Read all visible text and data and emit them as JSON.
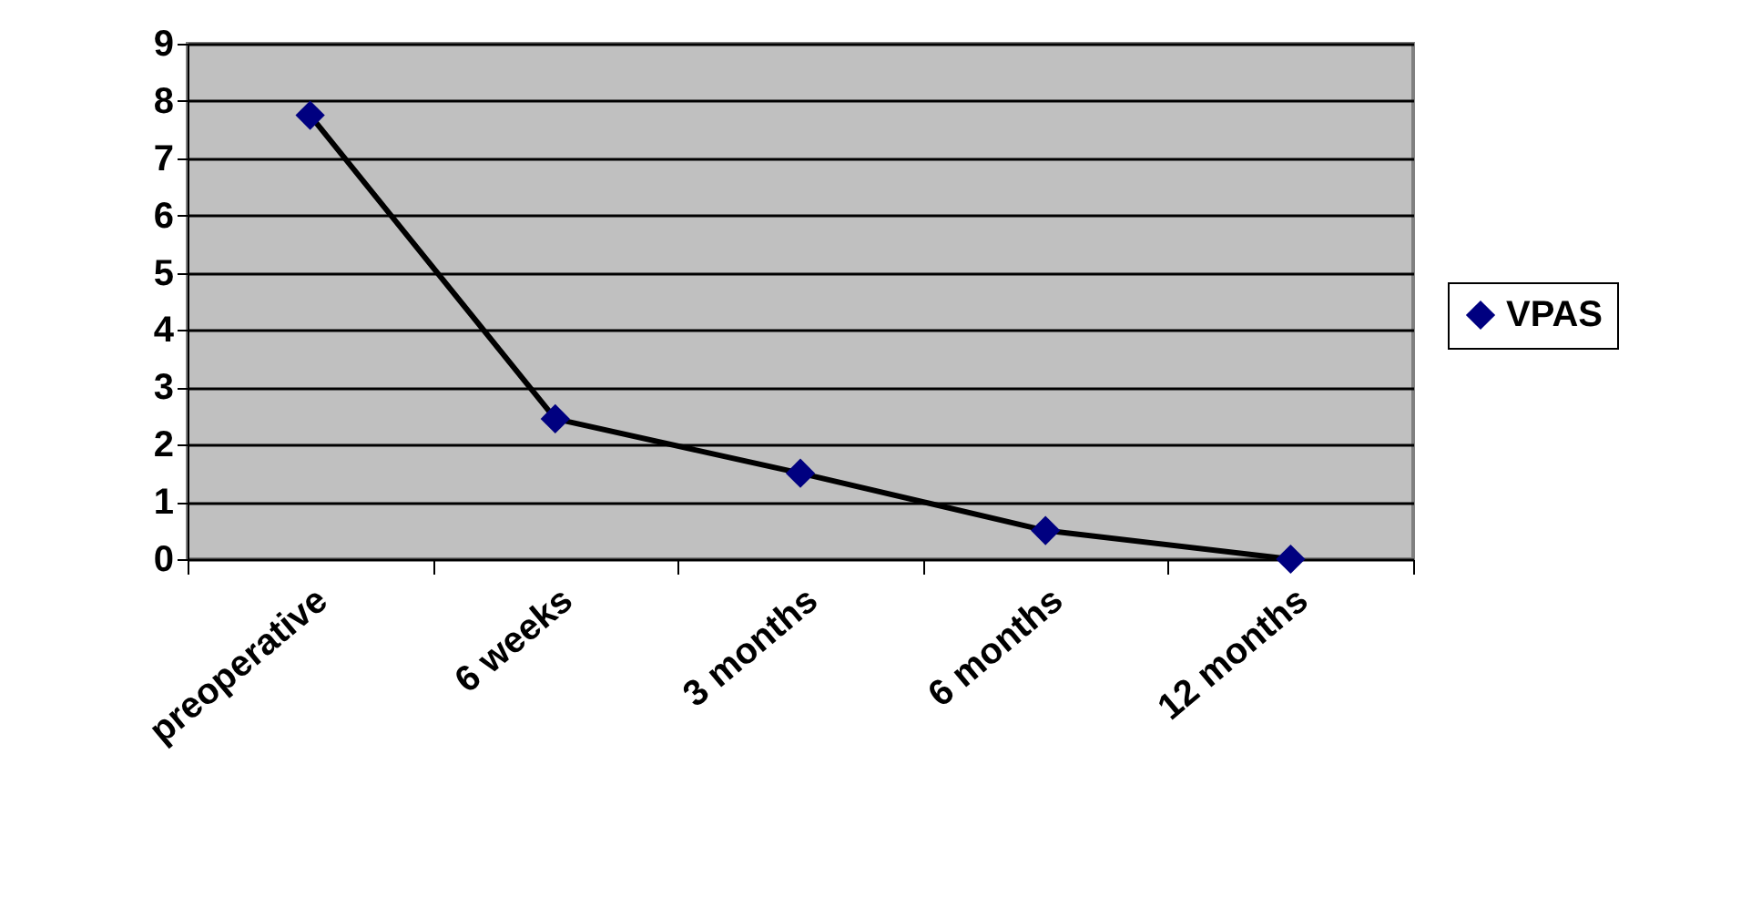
{
  "chart_data": {
    "type": "line",
    "categories": [
      "preoperative",
      "6 weeks",
      "3 months",
      "6 months",
      "12 months"
    ],
    "series": [
      {
        "name": "VPAS",
        "color": "#000080",
        "values": [
          7.75,
          2.45,
          1.5,
          0.5,
          0
        ]
      }
    ],
    "ylim": [
      0,
      9
    ],
    "yticks": [
      0,
      1,
      2,
      3,
      4,
      5,
      6,
      7,
      8,
      9
    ],
    "grid": "y",
    "legend": "right",
    "marker": "diamond",
    "line_style": "solid"
  }
}
